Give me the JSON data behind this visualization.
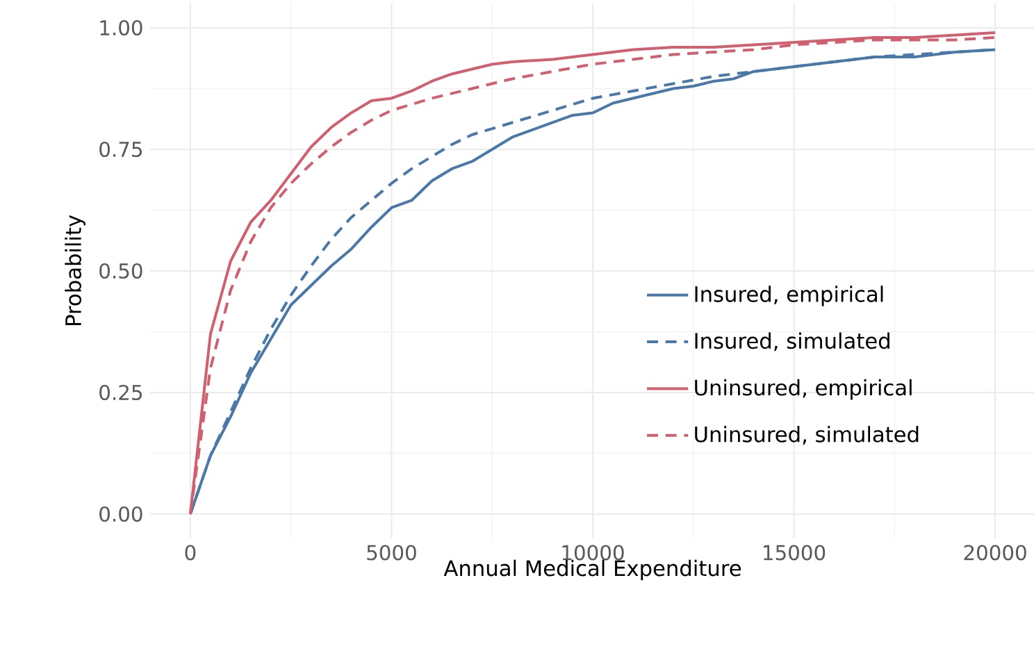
{
  "chart_data": {
    "type": "line",
    "xlabel": "Annual Medical Expenditure",
    "ylabel": "Probability",
    "xlim": [
      -1000,
      21000
    ],
    "ylim": [
      -0.05,
      1.05
    ],
    "xticks": [
      0,
      5000,
      10000,
      15000,
      20000
    ],
    "yticks": [
      {
        "value": 0,
        "label": "0.00"
      },
      {
        "value": 0.25,
        "label": "0.25"
      },
      {
        "value": 0.5,
        "label": "0.50"
      },
      {
        "value": 0.75,
        "label": "0.75"
      },
      {
        "value": 1,
        "label": "1.00"
      }
    ],
    "grid": true,
    "legend": "right",
    "marker": "none",
    "series": [
      {
        "name": "Insured, empirical",
        "color": "#4a78a8",
        "line_style": "solid",
        "x": [
          0,
          500,
          1000,
          1500,
          2000,
          2500,
          3000,
          3500,
          4000,
          4500,
          5000,
          5500,
          6000,
          6500,
          7000,
          7500,
          8000,
          8500,
          9000,
          9500,
          10000,
          10500,
          11000,
          11500,
          12000,
          12500,
          13000,
          13500,
          14000,
          15000,
          16000,
          17000,
          18000,
          19000,
          20000
        ],
        "values": [
          0,
          0.12,
          0.2,
          0.29,
          0.36,
          0.43,
          0.47,
          0.51,
          0.545,
          0.59,
          0.63,
          0.645,
          0.685,
          0.71,
          0.725,
          0.75,
          0.775,
          0.79,
          0.805,
          0.82,
          0.825,
          0.845,
          0.855,
          0.865,
          0.875,
          0.88,
          0.89,
          0.895,
          0.91,
          0.92,
          0.93,
          0.94,
          0.94,
          0.95,
          0.955
        ]
      },
      {
        "name": "Insured, simulated",
        "color": "#4a78a8",
        "line_style": "dashed",
        "x": [
          0,
          500,
          1000,
          1500,
          2000,
          2500,
          3000,
          3500,
          4000,
          4500,
          5000,
          5500,
          6000,
          6500,
          7000,
          8000,
          9000,
          10000,
          11000,
          12000,
          13000,
          14000,
          15000,
          16000,
          17000,
          18000,
          19000,
          20000
        ],
        "values": [
          0,
          0.12,
          0.21,
          0.3,
          0.38,
          0.45,
          0.51,
          0.565,
          0.61,
          0.645,
          0.68,
          0.71,
          0.735,
          0.76,
          0.78,
          0.805,
          0.83,
          0.855,
          0.87,
          0.885,
          0.9,
          0.91,
          0.92,
          0.93,
          0.94,
          0.945,
          0.95,
          0.955
        ]
      },
      {
        "name": "Uninsured, empirical",
        "color": "#d0606f",
        "line_style": "solid",
        "x": [
          0,
          500,
          1000,
          1500,
          2000,
          2500,
          3000,
          3500,
          4000,
          4500,
          5000,
          5500,
          6000,
          6500,
          7000,
          7500,
          8000,
          9000,
          10000,
          11000,
          12000,
          13000,
          14000,
          15000,
          16000,
          17000,
          18000,
          19000,
          20000
        ],
        "values": [
          0,
          0.37,
          0.52,
          0.6,
          0.645,
          0.7,
          0.755,
          0.795,
          0.825,
          0.85,
          0.855,
          0.87,
          0.89,
          0.905,
          0.915,
          0.925,
          0.93,
          0.935,
          0.945,
          0.955,
          0.96,
          0.96,
          0.965,
          0.97,
          0.975,
          0.98,
          0.98,
          0.985,
          0.99
        ]
      },
      {
        "name": "Uninsured, simulated",
        "color": "#d0606f",
        "line_style": "dashed",
        "x": [
          0,
          500,
          1000,
          1500,
          2000,
          2500,
          3000,
          3500,
          4000,
          4500,
          5000,
          6000,
          7000,
          8000,
          9000,
          10000,
          11000,
          12000,
          13000,
          14000,
          15000,
          16000,
          17000,
          18000,
          19000,
          20000
        ],
        "values": [
          0,
          0.3,
          0.46,
          0.56,
          0.63,
          0.68,
          0.72,
          0.755,
          0.785,
          0.81,
          0.83,
          0.855,
          0.875,
          0.895,
          0.91,
          0.925,
          0.935,
          0.945,
          0.95,
          0.955,
          0.965,
          0.97,
          0.975,
          0.975,
          0.975,
          0.98
        ]
      }
    ]
  }
}
